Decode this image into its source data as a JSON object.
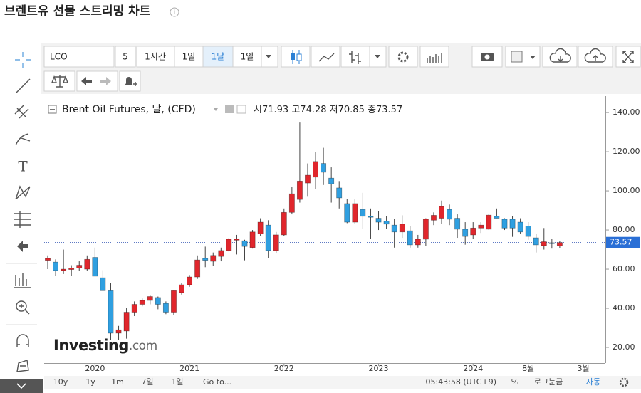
{
  "page": {
    "title": "브렌트유 선물 스트리밍 차트",
    "toolbar": {
      "symbol": "LCO",
      "items": [
        "5",
        "1시간",
        "1일",
        "1달",
        "1일"
      ]
    },
    "ohlc_labels": [
      "시",
      "고",
      "저",
      "종"
    ],
    "logo": {
      "main": "Investing",
      "suffix": ".com"
    },
    "bottom": {
      "ranges": [
        "10y",
        "1y",
        "1m",
        "7일",
        "1일"
      ],
      "goto": "Go to...",
      "time": "05:43:58 (UTC+9)",
      "percent": "%",
      "log": "로그눈금",
      "auto": "자동"
    }
  },
  "chart_data": {
    "type": "candlestick",
    "title": "Brent Oil Futures, 달, (CFD)",
    "categories": [
      null,
      null,
      null,
      null,
      null,
      null,
      "2020",
      null,
      null,
      null,
      null,
      null,
      null,
      null,
      null,
      null,
      null,
      null,
      "2021",
      null,
      null,
      null,
      null,
      null,
      null,
      null,
      null,
      null,
      null,
      null,
      "2022",
      null,
      null,
      null,
      null,
      null,
      null,
      null,
      null,
      null,
      null,
      null,
      "2023",
      null,
      null,
      null,
      null,
      null,
      null,
      null,
      null,
      null,
      null,
      null,
      "2024",
      null,
      null,
      null,
      null,
      null,
      null,
      "8월",
      null,
      null,
      null,
      null,
      null,
      null,
      "3월"
    ],
    "open": [
      64.5,
      63.6,
      59.3,
      59.8,
      60.5,
      60,
      66,
      55.6,
      49,
      27.3,
      28.4,
      38,
      42,
      44,
      45.5,
      42.5,
      38,
      48,
      52,
      56,
      65.5,
      64,
      66.5,
      69.5,
      74.8,
      74.5,
      71,
      78,
      82.5,
      69.5,
      77.5,
      89,
      95.6,
      104,
      107,
      114,
      106.5,
      101.5,
      93.5,
      84,
      90.5,
      87,
      86,
      84.5,
      82.5,
      79,
      79.6,
      72.4,
      75.3,
      85,
      86,
      90.5,
      86,
      80.4,
      77.5,
      81,
      80.4,
      87,
      85.5,
      85.5,
      84,
      82,
      76,
      72,
      73.5,
      71.93,
      null,
      null,
      null
    ],
    "high": [
      67,
      65,
      70,
      62,
      64,
      67,
      71,
      59.5,
      53,
      31,
      40,
      43.5,
      45,
      46.5,
      46,
      43.5,
      49,
      53,
      57,
      67,
      71.5,
      68.5,
      71,
      76,
      77.5,
      75,
      80,
      86,
      85,
      79,
      91,
      102,
      134.9,
      114,
      120,
      122,
      112,
      105,
      96,
      96,
      99,
      91,
      89.5,
      87,
      85.5,
      87.5,
      82,
      77.5,
      86,
      89,
      95,
      93,
      88,
      84,
      84,
      84,
      88,
      91,
      86,
      87,
      86,
      84,
      78,
      81,
      75.5,
      74.28,
      null,
      null,
      null
    ],
    "low": [
      60,
      56.4,
      57.5,
      56.5,
      59,
      59,
      56.4,
      49,
      24,
      24,
      24.5,
      36,
      41,
      42,
      39.5,
      37,
      36.5,
      47,
      51,
      55,
      61,
      61.5,
      64,
      69,
      67.5,
      64.5,
      70.5,
      77,
      65.5,
      68,
      77,
      88,
      94,
      97,
      101,
      103,
      94,
      91,
      83.5,
      83,
      80.5,
      75.5,
      80,
      80.5,
      71,
      76,
      71,
      71,
      72,
      82.5,
      83,
      82.5,
      76,
      72.5,
      75.5,
      78.5,
      80,
      86,
      80,
      76.5,
      78,
      75,
      68.5,
      70,
      70.5,
      70.85,
      null,
      null,
      null
    ],
    "close": [
      65.5,
      59.3,
      60,
      60.6,
      62,
      65,
      56.4,
      49,
      27.3,
      29,
      38,
      42,
      44,
      46,
      42,
      38,
      49,
      52,
      56,
      64.7,
      64.5,
      67,
      69.5,
      75.3,
      75.3,
      71.6,
      79,
      84,
      69.5,
      77.5,
      89,
      98.5,
      105,
      108,
      115,
      109.5,
      103.6,
      96.4,
      84,
      93.5,
      87,
      86.5,
      84,
      83,
      79,
      83,
      72.4,
      75.3,
      85.5,
      87.5,
      92,
      85.5,
      80.4,
      76.7,
      81,
      82.5,
      87.6,
      86,
      81,
      81,
      79,
      76.7,
      72.4,
      74,
      73,
      73.57,
      null,
      null,
      null
    ],
    "up_color": "#e0262c",
    "down_color": "#2f9fe0",
    "ylim": [
      12,
      148.4
    ],
    "yticks": [
      {
        "value": 20,
        "label": "20.00"
      },
      {
        "value": 40,
        "label": "40.00"
      },
      {
        "value": 60,
        "label": "60.00"
      },
      {
        "value": 80,
        "label": "80.00"
      },
      {
        "value": 100,
        "label": "100.00"
      },
      {
        "value": 120,
        "label": "120.00"
      },
      {
        "value": 140,
        "label": "140.00"
      }
    ],
    "grid": false
  }
}
